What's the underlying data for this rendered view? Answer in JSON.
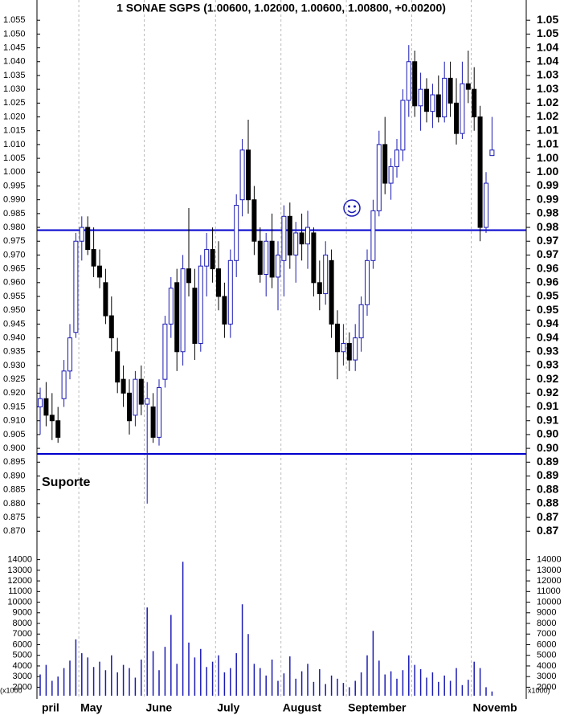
{
  "chart_data": [
    {
      "type": "candlestick",
      "title": "1 SONAE SGPS (1.00600, 1.02000, 1.00600, 1.00800, +0.00200)",
      "up_color": "#ffffff",
      "up_stroke": "#1a1ab4",
      "down_color": "#000000",
      "open": [
        0.915,
        0.918,
        0.912,
        0.91,
        0.918,
        0.928,
        0.942,
        0.975,
        0.98,
        0.972,
        0.966,
        0.96,
        0.948,
        0.935,
        0.925,
        0.92,
        0.912,
        0.925,
        0.916,
        0.915,
        0.904,
        0.925,
        0.945,
        0.96,
        0.935,
        0.965,
        0.958,
        0.938,
        0.966,
        0.972,
        0.965,
        0.955,
        0.945,
        0.968,
        0.99,
        1.008,
        0.99,
        0.975,
        0.963,
        0.975,
        0.962,
        0.968,
        0.984,
        0.97,
        0.978,
        0.974,
        0.978,
        0.96,
        0.956,
        0.968,
        0.945,
        0.935,
        0.938,
        0.932,
        0.94,
        0.952,
        0.968,
        0.986,
        1.01,
        0.996,
        1.002,
        1.008,
        1.026,
        1.04,
        1.024,
        1.03,
        1.022,
        1.028,
        1.02,
        1.034,
        1.025,
        1.014,
        1.032,
        1.03,
        1.02,
        0.98,
        1.006
      ],
      "high": [
        0.922,
        0.924,
        0.92,
        0.915,
        0.932,
        0.945,
        0.978,
        0.984,
        0.984,
        0.98,
        0.972,
        0.965,
        0.955,
        0.94,
        0.93,
        0.925,
        0.928,
        0.93,
        0.924,
        0.92,
        0.925,
        0.948,
        0.962,
        0.965,
        0.97,
        0.987,
        0.965,
        0.97,
        0.978,
        0.98,
        0.975,
        0.96,
        0.972,
        0.992,
        1.012,
        1.019,
        0.995,
        0.98,
        0.978,
        0.985,
        0.975,
        0.988,
        0.989,
        0.982,
        0.985,
        0.986,
        0.98,
        0.968,
        0.975,
        0.972,
        0.95,
        0.945,
        0.942,
        0.945,
        0.955,
        0.972,
        0.99,
        1.015,
        1.02,
        1.005,
        1.012,
        1.03,
        1.046,
        1.044,
        1.036,
        1.034,
        1.032,
        1.035,
        1.04,
        1.04,
        1.034,
        1.04,
        1.044,
        1.038,
        1.024,
        1.0,
        1.02
      ],
      "low": [
        0.905,
        0.908,
        0.903,
        0.902,
        0.915,
        0.925,
        0.94,
        0.968,
        0.97,
        0.962,
        0.958,
        0.945,
        0.935,
        0.92,
        0.915,
        0.905,
        0.908,
        0.912,
        0.88,
        0.902,
        0.901,
        0.922,
        0.94,
        0.928,
        0.93,
        0.955,
        0.932,
        0.935,
        0.955,
        0.96,
        0.95,
        0.94,
        0.94,
        0.962,
        0.984,
        0.985,
        0.97,
        0.96,
        0.955,
        0.958,
        0.95,
        0.955,
        0.965,
        0.96,
        0.968,
        0.965,
        0.955,
        0.95,
        0.952,
        0.94,
        0.925,
        0.93,
        0.928,
        0.928,
        0.935,
        0.948,
        0.965,
        0.984,
        0.992,
        0.99,
        0.998,
        1.004,
        1.02,
        1.02,
        1.015,
        1.018,
        1.016,
        1.018,
        1.018,
        1.02,
        1.01,
        1.012,
        1.025,
        1.015,
        0.975,
        0.978,
        1.006
      ],
      "close": [
        0.918,
        0.912,
        0.91,
        0.904,
        0.928,
        0.94,
        0.975,
        0.98,
        0.972,
        0.966,
        0.962,
        0.948,
        0.94,
        0.924,
        0.92,
        0.91,
        0.925,
        0.916,
        0.918,
        0.904,
        0.922,
        0.945,
        0.958,
        0.935,
        0.965,
        0.96,
        0.938,
        0.966,
        0.972,
        0.965,
        0.955,
        0.945,
        0.968,
        0.988,
        1.008,
        0.99,
        0.975,
        0.963,
        0.975,
        0.962,
        0.97,
        0.984,
        0.97,
        0.978,
        0.974,
        0.98,
        0.96,
        0.956,
        0.97,
        0.945,
        0.935,
        0.938,
        0.932,
        0.94,
        0.952,
        0.968,
        0.986,
        1.01,
        0.996,
        1.002,
        1.008,
        1.026,
        1.04,
        1.024,
        1.03,
        1.022,
        1.028,
        1.02,
        1.034,
        1.025,
        1.014,
        1.032,
        1.03,
        1.02,
        0.98,
        0.996,
        1.008
      ],
      "xticks": [
        {
          "value": 0,
          "label": "pril"
        },
        {
          "value": 6.5,
          "label": "May"
        },
        {
          "value": 17.5,
          "label": "June"
        },
        {
          "value": 29.5,
          "label": "July"
        },
        {
          "value": 40.5,
          "label": "August"
        },
        {
          "value": 51.5,
          "label": "September"
        },
        {
          "value": 72.5,
          "label": "Novemb"
        }
      ],
      "xgrid": [
        6.5,
        17.5,
        29.5,
        40.5,
        51.5,
        62.5,
        72.5
      ],
      "ylim": [
        0.866,
        1.06
      ],
      "yticks": [
        1.055,
        {
          "value": 1.05,
          "label": "1.050"
        },
        1.045,
        {
          "value": 1.04,
          "label": "1.040"
        },
        1.035,
        {
          "value": 1.03,
          "label": "1.030"
        },
        1.025,
        {
          "value": 1.02,
          "label": "1.020"
        },
        1.015,
        {
          "value": 1.01,
          "label": "1.010"
        },
        1.005,
        {
          "value": 1,
          "label": "1.000"
        },
        0.995,
        {
          "value": 0.99,
          "label": "0.990"
        },
        0.985,
        {
          "value": 0.98,
          "label": "0.980"
        },
        0.975,
        {
          "value": 0.97,
          "label": "0.970"
        },
        0.965,
        {
          "value": 0.96,
          "label": "0.960"
        },
        0.955,
        {
          "value": 0.95,
          "label": "0.950"
        },
        0.945,
        {
          "value": 0.94,
          "label": "0.940"
        },
        0.935,
        {
          "value": 0.93,
          "label": "0.930"
        },
        0.925,
        {
          "value": 0.92,
          "label": "0.920"
        },
        0.915,
        {
          "value": 0.91,
          "label": "0.910"
        },
        0.905,
        {
          "value": 0.9,
          "label": "0.900"
        },
        0.895,
        {
          "value": 0.89,
          "label": "0.890"
        },
        0.885,
        {
          "value": 0.88,
          "label": "0.880"
        },
        0.875,
        {
          "value": 0.87,
          "label": "0.870"
        }
      ],
      "y2ticks": [
        {
          "value": 1.055,
          "label": "1.05"
        },
        1.05,
        {
          "value": 1.045,
          "label": "1.04"
        },
        1.04,
        {
          "value": 1.035,
          "label": "1.03"
        },
        1.03,
        {
          "value": 1.025,
          "label": "1.02"
        },
        1.02,
        {
          "value": 1.015,
          "label": "1.01"
        },
        1.01,
        {
          "value": 1.005,
          "label": "1.00"
        },
        {
          "value": 1,
          "label": "1.00"
        },
        {
          "value": 0.995,
          "label": "0.99"
        },
        0.99,
        {
          "value": 0.985,
          "label": "0.98"
        },
        0.98,
        {
          "value": 0.975,
          "label": "0.97"
        },
        0.97,
        {
          "value": 0.965,
          "label": "0.96"
        },
        0.96,
        {
          "value": 0.955,
          "label": "0.95"
        },
        0.95,
        {
          "value": 0.945,
          "label": "0.94"
        },
        0.94,
        {
          "value": 0.935,
          "label": "0.93"
        },
        0.93,
        {
          "value": 0.925,
          "label": "0.92"
        },
        0.92,
        {
          "value": 0.915,
          "label": "0.91"
        },
        0.91,
        {
          "value": 0.905,
          "label": "0.90"
        },
        {
          "value": 0.9,
          "label": "0.90"
        },
        {
          "value": 0.895,
          "label": "0.89"
        },
        0.89,
        {
          "value": 0.885,
          "label": "0.88"
        },
        0.88,
        {
          "value": 0.875,
          "label": "0.87"
        },
        0.87
      ],
      "lines": [
        {
          "value": 0.979,
          "color": "#0000cc"
        },
        {
          "value": 0.898,
          "color": "#0000cc",
          "label": "Suporte"
        }
      ]
    },
    {
      "type": "bar",
      "color": "#1a1ab4",
      "values": [
        3200,
        4100,
        2600,
        3000,
        3800,
        4500,
        6500,
        5200,
        4800,
        3900,
        4400,
        3600,
        5000,
        3400,
        4100,
        3800,
        2900,
        4600,
        9500,
        5400,
        3600,
        5800,
        8800,
        4200,
        13800,
        6200,
        4800,
        5600,
        3900,
        4400,
        5000,
        3400,
        3800,
        5200,
        9800,
        7000,
        4200,
        3800,
        3100,
        4600,
        2600,
        3300,
        4900,
        2800,
        3500,
        4200,
        2500,
        3700,
        2300,
        3100,
        2800,
        2400,
        2000,
        2600,
        3400,
        5000,
        7300,
        4500,
        3200,
        3500,
        2800,
        3600,
        5000,
        4100,
        3700,
        2900,
        3400,
        2500,
        3100,
        2600,
        3800,
        2200,
        2700,
        4400,
        3800,
        2000,
        1600
      ],
      "ylim": [
        1200,
        14500
      ],
      "yticks": [
        14000,
        13000,
        12000,
        11000,
        10000,
        9000,
        8000,
        7000,
        6000,
        5000,
        4000,
        3000,
        2000
      ],
      "unit_left": "(x1000",
      "unit_right": "x1000)"
    }
  ]
}
